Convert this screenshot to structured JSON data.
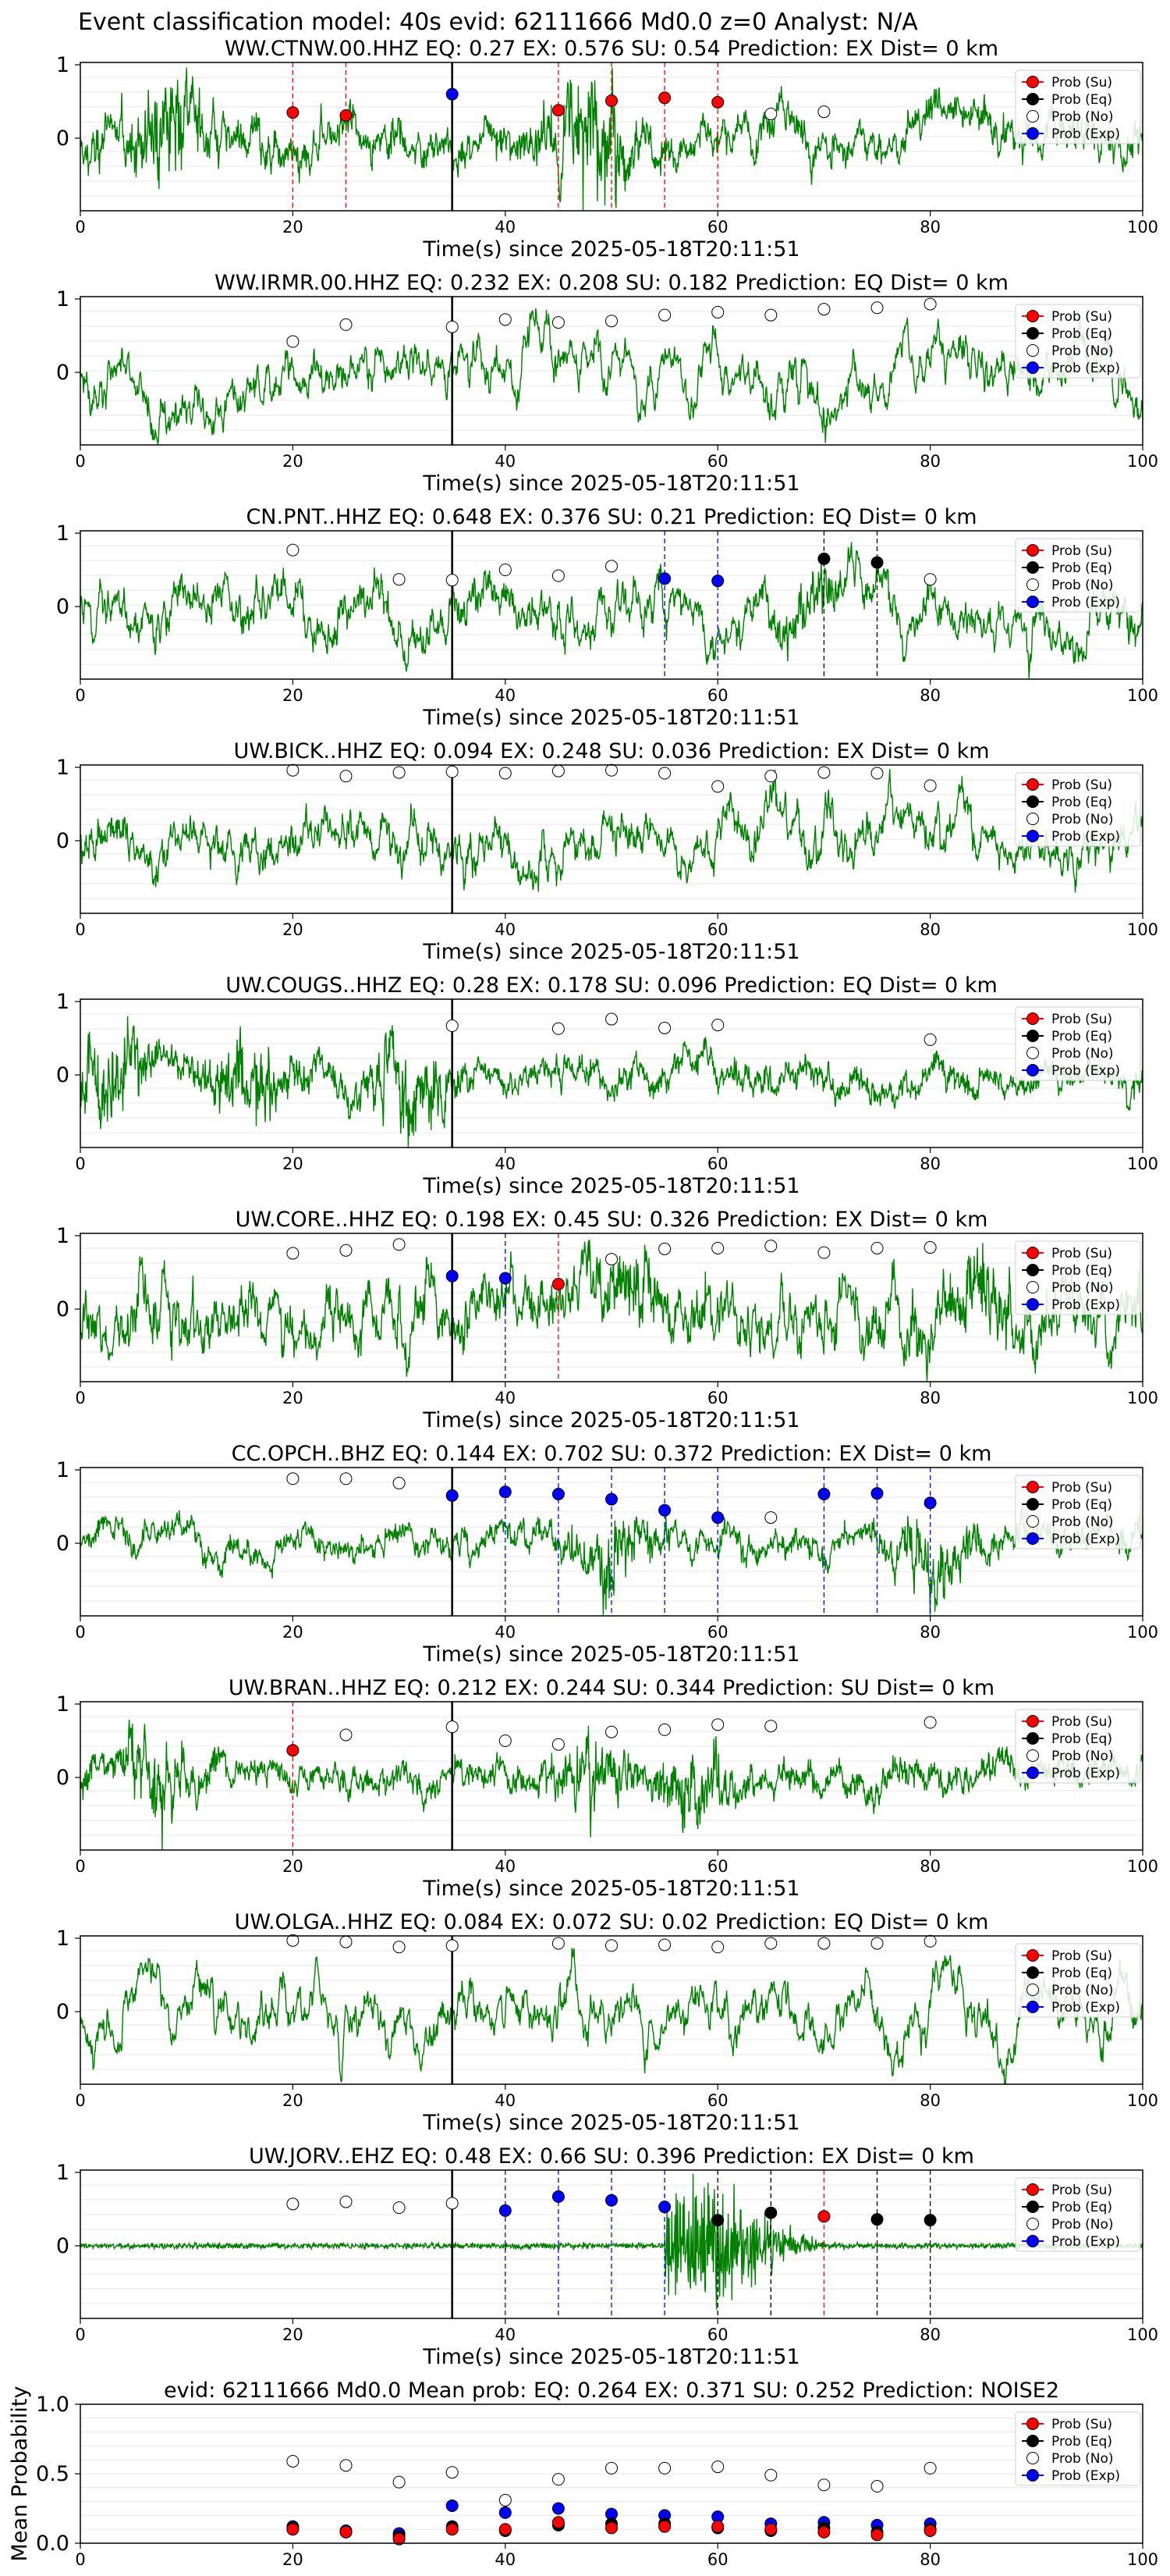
{
  "figure": {
    "suptitle": "Event classification model: 40s evid: 62111666 Md0.0 z=0 Analyst: N/A",
    "xlabel": "Time(s) since 2025-05-18T20:11:51",
    "legend": {
      "su": "Prob (Su)",
      "eq": "Prob (Eq)",
      "no": "Prob (No)",
      "exp": "Prob (Exp)"
    },
    "xticks": [
      "0",
      "20",
      "40",
      "60",
      "80",
      "100"
    ],
    "yticks_wave": [
      "0",
      "1"
    ],
    "yticks_mean": [
      "0.0",
      "0.5",
      "1.0"
    ],
    "mean_ylabel": "Mean Probability"
  },
  "colors": {
    "wave": "#008000",
    "su": "#ff0000",
    "eq": "#000000",
    "exp": "#0000ff",
    "no": "#ffffff",
    "onset": "#000000",
    "grid": "#e6e6e6"
  },
  "chart_data": [
    {
      "type": "line",
      "station": "WW.CTNW.00.HHZ",
      "title": "WW.CTNW.00.HHZ   EQ: 0.27   EX: 0.576   SU: 0.54   Prediction: EX    Dist= 0 km",
      "xlim": [
        0,
        100
      ],
      "onset": 35,
      "window_times": [
        20,
        25,
        35,
        45,
        50,
        55,
        60,
        65,
        70
      ],
      "classes": [
        "su",
        "su",
        "exp",
        "su",
        "su",
        "su",
        "su",
        "no",
        "no"
      ],
      "probs": [
        0.35,
        0.31,
        0.6,
        0.38,
        0.51,
        0.55,
        0.49,
        0.33,
        0.36
      ],
      "waveform": {
        "style": "bursty",
        "seed": 11,
        "bursts": [
          [
            8,
            0.9
          ],
          [
            48,
            0.9
          ]
        ]
      }
    },
    {
      "type": "line",
      "station": "WW.IRMR.00.HHZ",
      "title": "WW.IRMR.00.HHZ   EQ: 0.232   EX: 0.208   SU: 0.182   Prediction: EQ    Dist= 0 km",
      "xlim": [
        0,
        100
      ],
      "onset": 35,
      "window_times": [
        20,
        25,
        35,
        40,
        45,
        50,
        55,
        60,
        65,
        70,
        75,
        80
      ],
      "classes": [
        "no",
        "no",
        "no",
        "no",
        "no",
        "no",
        "no",
        "no",
        "no",
        "no",
        "no",
        "no"
      ],
      "probs": [
        0.42,
        0.65,
        0.62,
        0.72,
        0.68,
        0.7,
        0.78,
        0.82,
        0.78,
        0.86,
        0.88,
        0.93
      ],
      "waveform": {
        "style": "smooth",
        "seed": 22,
        "bursts": []
      }
    },
    {
      "type": "line",
      "station": "CN.PNT..HHZ",
      "title": "CN.PNT..HHZ   EQ: 0.648   EX: 0.376   SU: 0.21   Prediction: EQ    Dist= 0 km",
      "xlim": [
        0,
        100
      ],
      "onset": 35,
      "window_times": [
        20,
        30,
        35,
        40,
        45,
        50,
        55,
        60,
        70,
        75,
        80
      ],
      "classes": [
        "no",
        "no",
        "no",
        "no",
        "no",
        "no",
        "exp",
        "exp",
        "eq",
        "eq",
        "no"
      ],
      "probs": [
        0.77,
        0.37,
        0.36,
        0.5,
        0.42,
        0.55,
        0.38,
        0.35,
        0.65,
        0.6,
        0.37
      ],
      "waveform": {
        "style": "mixed",
        "seed": 33,
        "bursts": [
          [
            68,
            0.6
          ]
        ]
      }
    },
    {
      "type": "line",
      "station": "UW.BICK..HHZ",
      "title": "UW.BICK..HHZ   EQ: 0.094   EX: 0.248   SU: 0.036   Prediction: EX    Dist= 0 km",
      "xlim": [
        0,
        100
      ],
      "onset": 35,
      "window_times": [
        20,
        25,
        30,
        35,
        40,
        45,
        50,
        55,
        60,
        65,
        70,
        75,
        80
      ],
      "classes": [
        "no",
        "no",
        "no",
        "no",
        "no",
        "no",
        "no",
        "no",
        "no",
        "no",
        "no",
        "no",
        "no"
      ],
      "probs": [
        0.96,
        0.88,
        0.93,
        0.94,
        0.92,
        0.95,
        0.96,
        0.92,
        0.74,
        0.88,
        0.93,
        0.92,
        0.75
      ],
      "waveform": {
        "style": "mixed",
        "seed": 44,
        "bursts": []
      }
    },
    {
      "type": "line",
      "station": "UW.COUGS..HHZ",
      "title": "UW.COUGS..HHZ   EQ: 0.28   EX: 0.178   SU: 0.096   Prediction: EQ    Dist= 0 km",
      "xlim": [
        0,
        100
      ],
      "onset": 35,
      "window_times": [
        35,
        45,
        50,
        55,
        60,
        80
      ],
      "classes": [
        "no",
        "no",
        "no",
        "no",
        "no",
        "no"
      ],
      "probs": [
        0.67,
        0.63,
        0.76,
        0.64,
        0.68,
        0.48
      ],
      "waveform": {
        "style": "bursty",
        "seed": 55,
        "bursts": [
          [
            3,
            0.95
          ],
          [
            16,
            0.75
          ],
          [
            31,
            0.95
          ]
        ]
      }
    },
    {
      "type": "line",
      "station": "UW.CORE..HHZ",
      "title": "UW.CORE..HHZ   EQ: 0.198   EX: 0.45   SU: 0.326   Prediction: EX    Dist= 0 km",
      "xlim": [
        0,
        100
      ],
      "onset": 35,
      "window_times": [
        20,
        25,
        30,
        35,
        40,
        45,
        50,
        55,
        60,
        65,
        70,
        75,
        80
      ],
      "classes": [
        "no",
        "no",
        "no",
        "exp",
        "exp",
        "su",
        "no",
        "no",
        "no",
        "no",
        "no",
        "no",
        "no"
      ],
      "probs": [
        0.76,
        0.8,
        0.88,
        0.45,
        0.42,
        0.34,
        0.68,
        0.82,
        0.83,
        0.86,
        0.77,
        0.83,
        0.84
      ],
      "waveform": {
        "style": "mixed",
        "seed": 66,
        "bursts": [
          [
            52,
            0.7
          ],
          [
            85,
            0.85
          ]
        ]
      }
    },
    {
      "type": "line",
      "station": "CC.OPCH..BHZ",
      "title": "CC.OPCH..BHZ   EQ: 0.144   EX: 0.702   SU: 0.372   Prediction: EX    Dist= 0 km",
      "xlim": [
        0,
        100
      ],
      "onset": 35,
      "window_times": [
        20,
        25,
        30,
        35,
        40,
        45,
        50,
        55,
        60,
        65,
        70,
        75,
        80
      ],
      "classes": [
        "no",
        "no",
        "no",
        "exp",
        "exp",
        "exp",
        "exp",
        "exp",
        "exp",
        "no",
        "exp",
        "exp",
        "exp"
      ],
      "probs": [
        0.88,
        0.88,
        0.82,
        0.65,
        0.7,
        0.67,
        0.6,
        0.45,
        0.35,
        0.35,
        0.67,
        0.68,
        0.55
      ],
      "waveform": {
        "style": "quiet",
        "seed": 77,
        "bursts": [
          [
            50,
            0.75
          ],
          [
            80,
            0.8
          ]
        ]
      }
    },
    {
      "type": "line",
      "station": "UW.BRAN..HHZ",
      "title": "UW.BRAN..HHZ   EQ: 0.212   EX: 0.244   SU: 0.344   Prediction: SU    Dist= 0 km",
      "xlim": [
        0,
        100
      ],
      "onset": 35,
      "window_times": [
        20,
        25,
        35,
        40,
        45,
        50,
        55,
        60,
        65,
        80
      ],
      "classes": [
        "su",
        "no",
        "no",
        "no",
        "no",
        "no",
        "no",
        "no",
        "no",
        "no"
      ],
      "probs": [
        0.37,
        0.58,
        0.69,
        0.5,
        0.45,
        0.62,
        0.65,
        0.72,
        0.7,
        0.75
      ],
      "waveform": {
        "style": "bursty",
        "seed": 88,
        "bursts": [
          [
            7,
            0.8
          ],
          [
            48,
            0.6
          ],
          [
            58,
            0.6
          ]
        ]
      }
    },
    {
      "type": "line",
      "station": "UW.OLGA..HHZ",
      "title": "UW.OLGA..HHZ   EQ: 0.084   EX: 0.072   SU: 0.02   Prediction: EQ    Dist= 0 km",
      "xlim": [
        0,
        100
      ],
      "onset": 35,
      "window_times": [
        20,
        25,
        30,
        35,
        45,
        50,
        55,
        60,
        65,
        70,
        75,
        80
      ],
      "classes": [
        "no",
        "no",
        "no",
        "no",
        "no",
        "no",
        "no",
        "no",
        "no",
        "no",
        "no",
        "no"
      ],
      "probs": [
        0.97,
        0.95,
        0.88,
        0.9,
        0.93,
        0.9,
        0.91,
        0.88,
        0.93,
        0.93,
        0.93,
        0.96
      ],
      "waveform": {
        "style": "smooth",
        "seed": 99,
        "bursts": []
      }
    },
    {
      "type": "line",
      "station": "UW.JORV..EHZ",
      "title": "UW.JORV..EHZ   EQ: 0.48  EX: 0.66  SU: 0.396   Prediction: EX    Dist= 0 km",
      "xlim": [
        0,
        100
      ],
      "onset": 35,
      "window_times": [
        20,
        25,
        30,
        35,
        40,
        45,
        50,
        55,
        60,
        65,
        70,
        75,
        80
      ],
      "classes": [
        "no",
        "no",
        "no",
        "no",
        "exp",
        "exp",
        "exp",
        "exp",
        "eq",
        "eq",
        "su",
        "eq",
        "eq"
      ],
      "probs": [
        0.57,
        0.6,
        0.52,
        0.58,
        0.48,
        0.67,
        0.62,
        0.53,
        0.35,
        0.45,
        0.4,
        0.36,
        0.35
      ],
      "waveform": {
        "style": "quake",
        "seed": 111,
        "bursts": [
          [
            57,
            0.95
          ]
        ]
      }
    },
    {
      "type": "scatter",
      "title": "evid: 62111666  Md0.0   Mean prob:   EQ: 0.264  EX: 0.371  SU: 0.252   Prediction: NOISE2",
      "xlim": [
        0,
        100
      ],
      "ylim": [
        0,
        1
      ],
      "x": [
        20,
        25,
        30,
        35,
        40,
        45,
        50,
        55,
        60,
        65,
        70,
        75,
        80
      ],
      "series": [
        {
          "name": "Prob (No)",
          "key": "no",
          "values": [
            0.59,
            0.56,
            0.44,
            0.51,
            0.31,
            0.46,
            0.54,
            0.54,
            0.55,
            0.49,
            0.42,
            0.41,
            0.54
          ]
        },
        {
          "name": "Prob (Exp)",
          "key": "exp",
          "values": [
            0.12,
            0.09,
            0.07,
            0.27,
            0.22,
            0.25,
            0.21,
            0.2,
            0.19,
            0.14,
            0.15,
            0.13,
            0.14
          ]
        },
        {
          "name": "Prob (Eq)",
          "key": "eq",
          "values": [
            0.11,
            0.08,
            0.05,
            0.12,
            0.09,
            0.13,
            0.14,
            0.14,
            0.11,
            0.09,
            0.11,
            0.08,
            0.1
          ]
        },
        {
          "name": "Prob (Su)",
          "key": "su",
          "values": [
            0.1,
            0.08,
            0.03,
            0.1,
            0.1,
            0.15,
            0.11,
            0.12,
            0.12,
            0.1,
            0.08,
            0.06,
            0.09
          ]
        }
      ]
    }
  ]
}
